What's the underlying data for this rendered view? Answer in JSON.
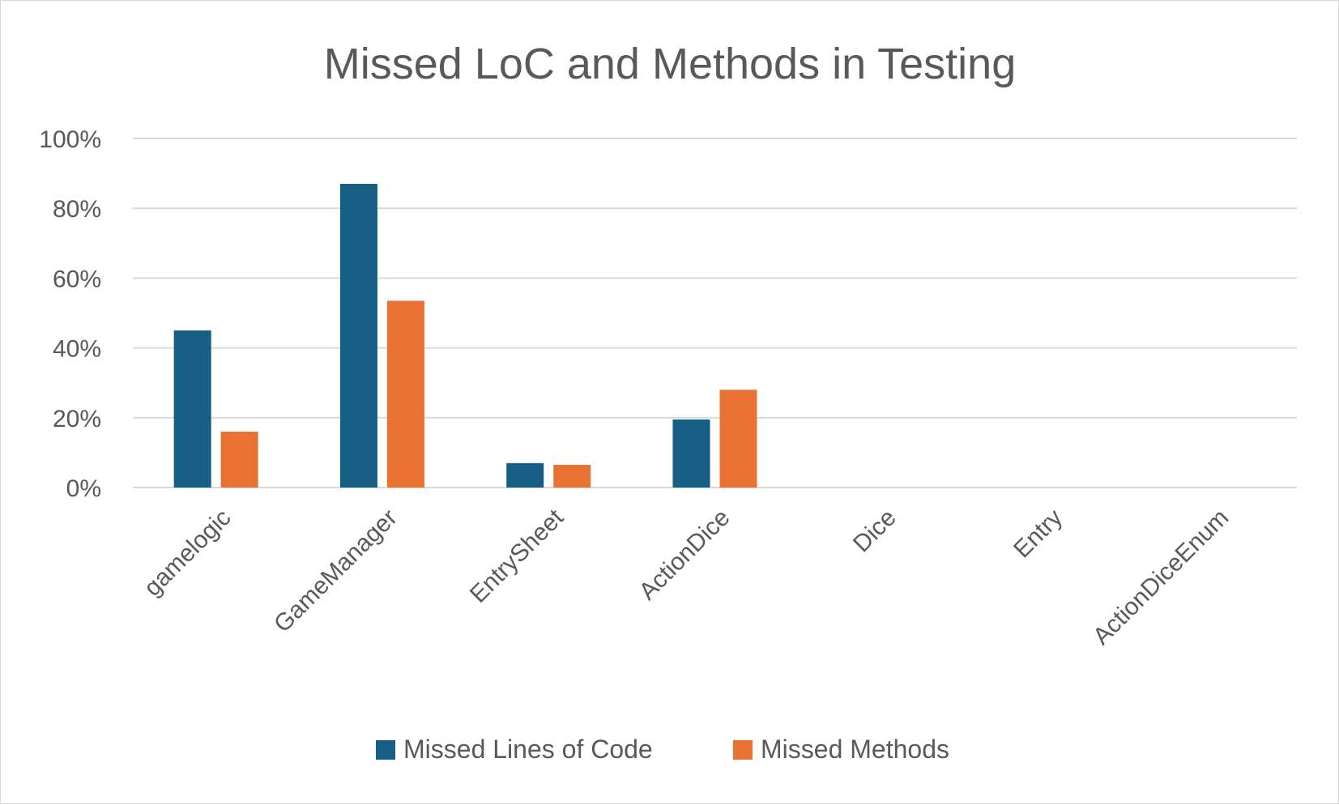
{
  "chart_data": {
    "type": "bar",
    "title": "Missed LoC and Methods in Testing",
    "xlabel": "",
    "ylabel": "",
    "categories": [
      "gamelogic",
      "GameManager",
      "EntrySheet",
      "ActionDice",
      "Dice",
      "Entry",
      "ActionDiceEnum"
    ],
    "series": [
      {
        "name": "Missed Lines of Code",
        "color": "#165E83",
        "values": [
          0.45,
          0.87,
          0.07,
          0.195,
          0,
          0,
          0
        ]
      },
      {
        "name": "Missed Methods",
        "color": "#E97132",
        "values": [
          0.16,
          0.535,
          0.065,
          0.28,
          0,
          0,
          0
        ]
      }
    ],
    "ylim": [
      0,
      1
    ],
    "yticks": [
      {
        "value": 0,
        "label": "0%"
      },
      {
        "value": 0.2,
        "label": "20%"
      },
      {
        "value": 0.4,
        "label": "40%"
      },
      {
        "value": 0.6,
        "label": "60%"
      },
      {
        "value": 0.8,
        "label": "80%"
      },
      {
        "value": 1,
        "label": "100%"
      }
    ],
    "grid": true,
    "legend_position": "bottom"
  }
}
